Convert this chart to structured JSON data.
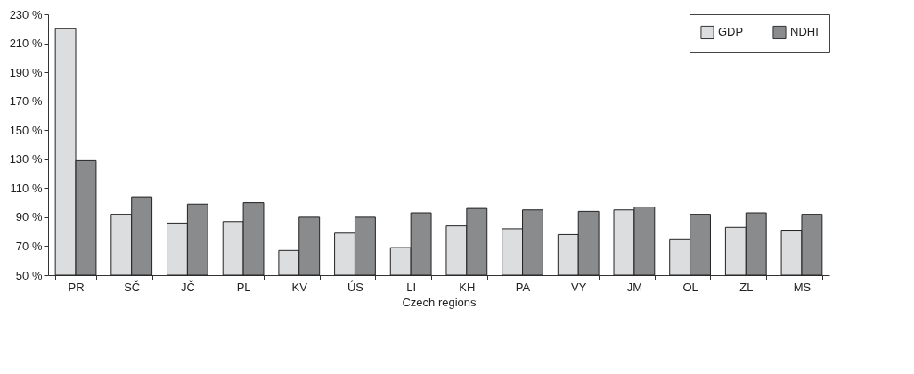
{
  "chart_data": {
    "type": "bar",
    "xlabel": "Czech regions",
    "categories": [
      "PR",
      "SČ",
      "JČ",
      "PL",
      "KV",
      "ÚS",
      "LI",
      "KH",
      "PA",
      "VY",
      "JM",
      "OL",
      "ZL",
      "MS"
    ],
    "series": [
      {
        "name": "GDP",
        "color": "#dcdddf",
        "values": [
          220,
          92,
          86,
          87,
          67,
          79,
          69,
          84,
          82,
          78,
          95,
          75,
          83,
          81
        ]
      },
      {
        "name": "NDHI",
        "color": "#8a8b8d",
        "values": [
          129,
          104,
          99,
          100,
          90,
          90,
          93,
          96,
          95,
          94,
          97,
          92,
          93,
          92
        ]
      }
    ],
    "ylim": [
      50,
      230
    ],
    "yticks": [
      {
        "value": 50,
        "label": "50 %"
      },
      {
        "value": 70,
        "label": "70 %"
      },
      {
        "value": 90,
        "label": "90 %"
      },
      {
        "value": 110,
        "label": "110 %"
      },
      {
        "value": 130,
        "label": "130 %"
      },
      {
        "value": 150,
        "label": "150 %"
      },
      {
        "value": 170,
        "label": "170 %"
      },
      {
        "value": 190,
        "label": "190 %"
      },
      {
        "value": 210,
        "label": "210 %"
      },
      {
        "value": 230,
        "label": "230 %"
      }
    ],
    "grid": false,
    "legend": "top right"
  }
}
